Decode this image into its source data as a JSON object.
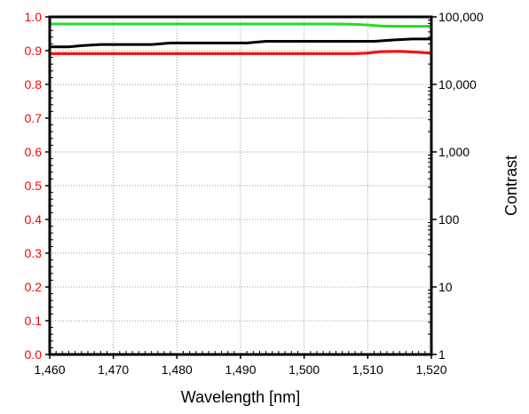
{
  "chart_data": {
    "type": "line",
    "title": "",
    "xlabel": "Wavelength [nm]",
    "y2label": "Contrast",
    "xlim": [
      1460,
      1520
    ],
    "ylim": [
      0.0,
      1.0
    ],
    "y2lim": [
      1,
      100000
    ],
    "y2scale": "log",
    "grid": true,
    "legend": "none",
    "x_ticks": [
      "1,460",
      "1,470",
      "1,480",
      "1,490",
      "1,500",
      "1,510",
      "1,520"
    ],
    "y_ticks": [
      "0.0",
      "0.1",
      "0.2",
      "0.3",
      "0.4",
      "0.5",
      "0.6",
      "0.7",
      "0.8",
      "0.9",
      "1.0"
    ],
    "y2_ticks": [
      "1",
      "10",
      "100",
      "1,000",
      "10,000",
      "100,000"
    ],
    "colors": {
      "left_axis": "#ff0000",
      "right_axis": "#000000",
      "grid": "#999999"
    },
    "series": [
      {
        "color": "#22dd22",
        "axis": "left",
        "x": [
          1460,
          1470,
          1480,
          1490,
          1500,
          1505,
          1508,
          1510,
          1512,
          1515,
          1520
        ],
        "y": [
          0.979,
          0.979,
          0.979,
          0.979,
          0.979,
          0.979,
          0.978,
          0.976,
          0.973,
          0.972,
          0.972
        ]
      },
      {
        "color": "#ff0000",
        "axis": "left",
        "x": [
          1460,
          1470,
          1480,
          1490,
          1500,
          1508,
          1510,
          1512,
          1515,
          1518,
          1520
        ],
        "y": [
          0.891,
          0.891,
          0.891,
          0.891,
          0.891,
          0.891,
          0.893,
          0.897,
          0.898,
          0.895,
          0.892
        ]
      },
      {
        "color": "#000000",
        "axis": "right",
        "x": [
          1460,
          1463,
          1465,
          1468,
          1472,
          1476,
          1479,
          1483,
          1487,
          1491,
          1494,
          1497,
          1500,
          1504,
          1508,
          1511,
          1514,
          1517,
          1520
        ],
        "y": [
          36000,
          36000,
          37500,
          39000,
          39000,
          39000,
          41000,
          41000,
          41000,
          41000,
          43500,
          43500,
          43500,
          43500,
          43500,
          43500,
          45500,
          47000,
          47000
        ]
      }
    ]
  }
}
